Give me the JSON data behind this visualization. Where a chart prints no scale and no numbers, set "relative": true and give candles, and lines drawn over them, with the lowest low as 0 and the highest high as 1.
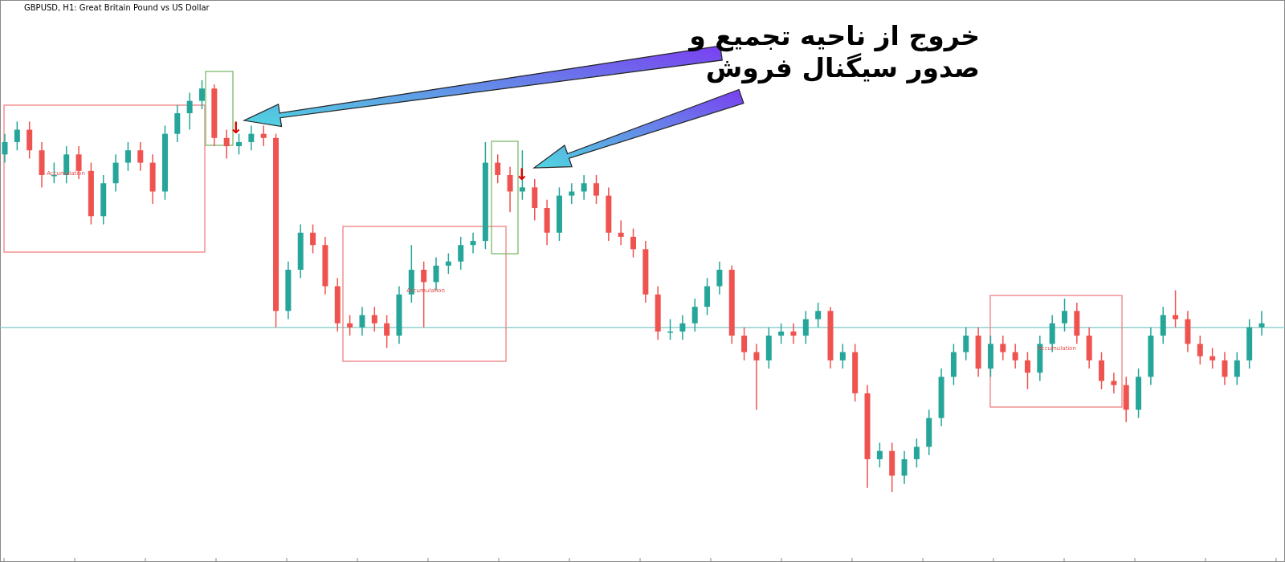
{
  "chart_data": {
    "type": "candlestick",
    "relative": true,
    "title": "GBPUSD, H1:  Great Britain Pound vs US Dollar",
    "categories": [
      null,
      null,
      null,
      null,
      null,
      null,
      null,
      null,
      null,
      null,
      null,
      null,
      null,
      null,
      null,
      null,
      null,
      null,
      null,
      null,
      null,
      null,
      null,
      null,
      null,
      null,
      null,
      null,
      null,
      null,
      null,
      null,
      null,
      null,
      null,
      null,
      null,
      null,
      null,
      null,
      null,
      null,
      null,
      null,
      null,
      null,
      null,
      null,
      null,
      null,
      null,
      null,
      null,
      null,
      null,
      null,
      null,
      null,
      null,
      null,
      null,
      null,
      null,
      null,
      null,
      null,
      null,
      null,
      null,
      null,
      null,
      null,
      null,
      null,
      null,
      null,
      null,
      null,
      null,
      null,
      null,
      null,
      null,
      null,
      null,
      null,
      null,
      null,
      null,
      null,
      null,
      null,
      null,
      null,
      null,
      null,
      null,
      null,
      null,
      null,
      null,
      null,
      null
    ],
    "ohlc": [
      [
        0.82,
        0.87,
        0.8,
        0.85
      ],
      [
        0.85,
        0.9,
        0.83,
        0.88
      ],
      [
        0.88,
        0.9,
        0.81,
        0.83
      ],
      [
        0.83,
        0.85,
        0.74,
        0.77
      ],
      [
        0.77,
        0.8,
        0.75,
        0.77
      ],
      [
        0.77,
        0.84,
        0.75,
        0.82
      ],
      [
        0.82,
        0.84,
        0.76,
        0.78
      ],
      [
        0.78,
        0.8,
        0.65,
        0.67
      ],
      [
        0.67,
        0.77,
        0.65,
        0.75
      ],
      [
        0.75,
        0.82,
        0.73,
        0.8
      ],
      [
        0.8,
        0.85,
        0.78,
        0.83
      ],
      [
        0.83,
        0.85,
        0.78,
        0.8
      ],
      [
        0.8,
        0.82,
        0.7,
        0.73
      ],
      [
        0.73,
        0.89,
        0.71,
        0.87
      ],
      [
        0.87,
        0.94,
        0.85,
        0.92
      ],
      [
        0.92,
        0.97,
        0.88,
        0.95
      ],
      [
        0.95,
        1.0,
        0.93,
        0.98
      ],
      [
        0.98,
        0.99,
        0.84,
        0.86
      ],
      [
        0.86,
        0.88,
        0.81,
        0.84
      ],
      [
        0.84,
        0.87,
        0.82,
        0.85
      ],
      [
        0.85,
        0.89,
        0.83,
        0.87
      ],
      [
        0.87,
        0.89,
        0.84,
        0.86
      ],
      [
        0.86,
        0.87,
        0.4,
        0.44
      ],
      [
        0.44,
        0.56,
        0.42,
        0.54
      ],
      [
        0.54,
        0.65,
        0.52,
        0.63
      ],
      [
        0.63,
        0.65,
        0.58,
        0.6
      ],
      [
        0.6,
        0.62,
        0.48,
        0.5
      ],
      [
        0.5,
        0.52,
        0.39,
        0.41
      ],
      [
        0.41,
        0.43,
        0.38,
        0.4
      ],
      [
        0.4,
        0.45,
        0.38,
        0.43
      ],
      [
        0.43,
        0.45,
        0.39,
        0.41
      ],
      [
        0.41,
        0.43,
        0.35,
        0.38
      ],
      [
        0.38,
        0.5,
        0.36,
        0.48
      ],
      [
        0.48,
        0.6,
        0.46,
        0.54
      ],
      [
        0.54,
        0.56,
        0.4,
        0.51
      ],
      [
        0.51,
        0.57,
        0.49,
        0.55
      ],
      [
        0.55,
        0.58,
        0.53,
        0.56
      ],
      [
        0.56,
        0.62,
        0.54,
        0.6
      ],
      [
        0.6,
        0.63,
        0.58,
        0.61
      ],
      [
        0.61,
        0.85,
        0.59,
        0.8
      ],
      [
        0.8,
        0.82,
        0.75,
        0.77
      ],
      [
        0.77,
        0.79,
        0.68,
        0.73
      ],
      [
        0.73,
        0.83,
        0.71,
        0.74
      ],
      [
        0.74,
        0.76,
        0.66,
        0.69
      ],
      [
        0.69,
        0.71,
        0.6,
        0.63
      ],
      [
        0.63,
        0.74,
        0.61,
        0.72
      ],
      [
        0.72,
        0.75,
        0.7,
        0.73
      ],
      [
        0.73,
        0.77,
        0.71,
        0.75
      ],
      [
        0.75,
        0.77,
        0.7,
        0.72
      ],
      [
        0.72,
        0.74,
        0.61,
        0.63
      ],
      [
        0.63,
        0.66,
        0.6,
        0.62
      ],
      [
        0.62,
        0.64,
        0.57,
        0.59
      ],
      [
        0.59,
        0.61,
        0.46,
        0.48
      ],
      [
        0.48,
        0.5,
        0.37,
        0.39
      ],
      [
        0.39,
        0.42,
        0.37,
        0.39
      ],
      [
        0.39,
        0.43,
        0.37,
        0.41
      ],
      [
        0.41,
        0.47,
        0.39,
        0.45
      ],
      [
        0.45,
        0.52,
        0.43,
        0.5
      ],
      [
        0.5,
        0.56,
        0.48,
        0.54
      ],
      [
        0.54,
        0.55,
        0.36,
        0.38
      ],
      [
        0.38,
        0.4,
        0.32,
        0.34
      ],
      [
        0.34,
        0.36,
        0.2,
        0.32
      ],
      [
        0.32,
        0.4,
        0.3,
        0.38
      ],
      [
        0.38,
        0.41,
        0.36,
        0.39
      ],
      [
        0.39,
        0.41,
        0.36,
        0.38
      ],
      [
        0.38,
        0.44,
        0.36,
        0.42
      ],
      [
        0.42,
        0.46,
        0.4,
        0.44
      ],
      [
        0.44,
        0.45,
        0.3,
        0.32
      ],
      [
        0.32,
        0.36,
        0.3,
        0.34
      ],
      [
        0.34,
        0.36,
        0.22,
        0.24
      ],
      [
        0.24,
        0.26,
        0.01,
        0.08
      ],
      [
        0.08,
        0.12,
        0.06,
        0.1
      ],
      [
        0.1,
        0.12,
        0.0,
        0.04
      ],
      [
        0.04,
        0.1,
        0.02,
        0.08
      ],
      [
        0.08,
        0.13,
        0.06,
        0.11
      ],
      [
        0.11,
        0.2,
        0.09,
        0.18
      ],
      [
        0.18,
        0.3,
        0.16,
        0.28
      ],
      [
        0.28,
        0.36,
        0.26,
        0.34
      ],
      [
        0.34,
        0.4,
        0.32,
        0.38
      ],
      [
        0.38,
        0.4,
        0.28,
        0.3
      ],
      [
        0.3,
        0.38,
        0.28,
        0.36
      ],
      [
        0.36,
        0.38,
        0.32,
        0.34
      ],
      [
        0.34,
        0.36,
        0.3,
        0.32
      ],
      [
        0.32,
        0.34,
        0.25,
        0.29
      ],
      [
        0.29,
        0.38,
        0.27,
        0.36
      ],
      [
        0.36,
        0.43,
        0.34,
        0.41
      ],
      [
        0.41,
        0.47,
        0.39,
        0.44
      ],
      [
        0.44,
        0.46,
        0.36,
        0.38
      ],
      [
        0.38,
        0.4,
        0.3,
        0.32
      ],
      [
        0.32,
        0.34,
        0.25,
        0.27
      ],
      [
        0.27,
        0.29,
        0.24,
        0.26
      ],
      [
        0.26,
        0.28,
        0.17,
        0.2
      ],
      [
        0.2,
        0.3,
        0.18,
        0.28
      ],
      [
        0.28,
        0.4,
        0.26,
        0.38
      ],
      [
        0.38,
        0.45,
        0.36,
        0.43
      ],
      [
        0.43,
        0.49,
        0.4,
        0.42
      ],
      [
        0.42,
        0.44,
        0.34,
        0.36
      ],
      [
        0.36,
        0.38,
        0.31,
        0.33
      ],
      [
        0.33,
        0.35,
        0.3,
        0.32
      ],
      [
        0.32,
        0.34,
        0.26,
        0.28
      ],
      [
        0.28,
        0.34,
        0.26,
        0.32
      ],
      [
        0.32,
        0.42,
        0.3,
        0.4
      ],
      [
        0.4,
        0.44,
        0.38,
        0.41
      ]
    ],
    "colors": [
      "#26a69a",
      "#26a69a",
      "#ef5350",
      "#ef5350",
      "#26a69a",
      "#26a69a",
      "#ef5350",
      "#ef5350",
      "#26a69a",
      "#26a69a",
      "#26a69a",
      "#ef5350",
      "#ef5350",
      "#26a69a",
      "#26a69a",
      "#26a69a",
      "#26a69a",
      "#ef5350",
      "#ef5350",
      "#26a69a",
      "#26a69a",
      "#ef5350",
      "#ef5350",
      "#26a69a",
      "#26a69a",
      "#ef5350",
      "#ef5350",
      "#ef5350",
      "#ef5350",
      "#26a69a",
      "#ef5350",
      "#ef5350",
      "#26a69a",
      "#26a69a",
      "#ef5350",
      "#26a69a",
      "#26a69a",
      "#26a69a",
      "#26a69a",
      "#26a69a",
      "#ef5350",
      "#ef5350",
      "#26a69a",
      "#ef5350",
      "#ef5350",
      "#26a69a",
      "#26a69a",
      "#26a69a",
      "#ef5350",
      "#ef5350",
      "#ef5350",
      "#ef5350",
      "#ef5350",
      "#ef5350",
      "#26a69a",
      "#26a69a",
      "#26a69a",
      "#26a69a",
      "#26a69a",
      "#ef5350",
      "#ef5350",
      "#ef5350",
      "#26a69a",
      "#26a69a",
      "#ef5350",
      "#26a69a",
      "#26a69a",
      "#ef5350",
      "#26a69a",
      "#ef5350",
      "#ef5350",
      "#26a69a",
      "#ef5350",
      "#26a69a",
      "#26a69a",
      "#26a69a",
      "#26a69a",
      "#26a69a",
      "#26a69a",
      "#ef5350",
      "#26a69a",
      "#ef5350",
      "#ef5350",
      "#ef5350",
      "#26a69a",
      "#26a69a",
      "#26a69a",
      "#ef5350",
      "#ef5350",
      "#ef5350",
      "#ef5350",
      "#ef5350",
      "#26a69a",
      "#26a69a",
      "#26a69a",
      "#ef5350",
      "#ef5350",
      "#ef5350",
      "#ef5350",
      "#ef5350",
      "#26a69a",
      "#26a69a",
      "#26a69a"
    ],
    "ref_lines": [
      {
        "axis": "y",
        "value": 0.4,
        "color": "#7ec8c8"
      }
    ],
    "annotations": [
      "خروج از ناحیه تجمیع و\nصدور سیگنال فروش",
      "Accumulation",
      "Accumulation",
      "Accumulation",
      "↓",
      "↓"
    ]
  }
}
